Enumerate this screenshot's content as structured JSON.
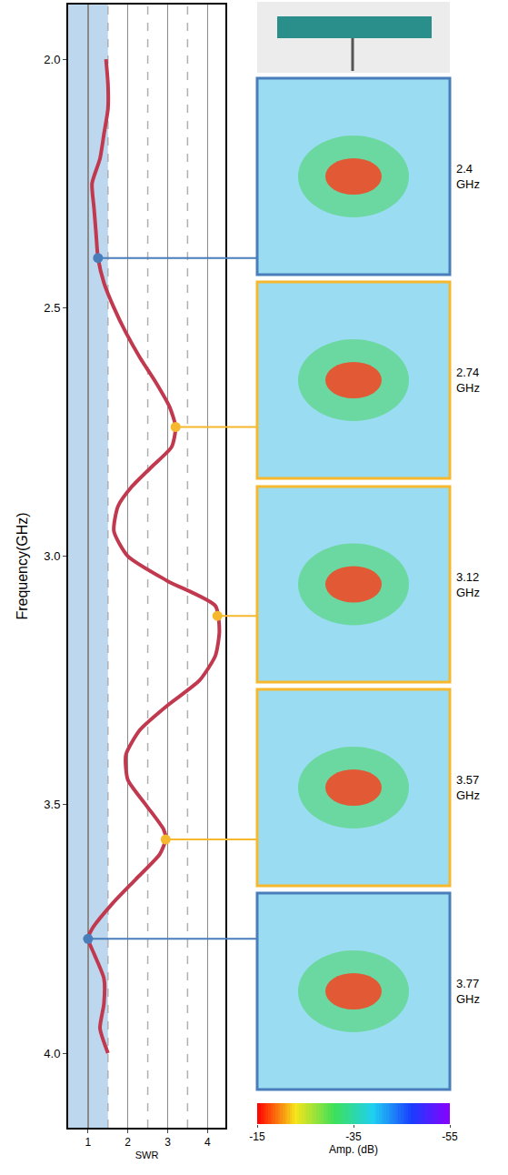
{
  "chart_data": {
    "type": "line",
    "x_label": "SWR",
    "y_label": "Frequency(GHz)",
    "xlim": [
      0.5,
      4.45
    ],
    "xticks": [
      1,
      2,
      3,
      4
    ],
    "minor_grid_x": [
      1.5,
      2.5,
      3.5
    ],
    "ylim": [
      4.15,
      1.89
    ],
    "yticks": [
      {
        "value": 2,
        "label": "2.0"
      },
      {
        "value": 2.5,
        "label": "2.5"
      },
      {
        "value": 3,
        "label": "3.0"
      },
      {
        "value": 3.5,
        "label": "3.5"
      },
      {
        "value": 4,
        "label": "4.0"
      }
    ],
    "grid": true,
    "band": {
      "xlim": [
        0.5,
        1.5
      ],
      "color": "#bdd7ee"
    },
    "series": [
      {
        "color": "#c0394f",
        "frequency": [
          2.0,
          2.05,
          2.1,
          2.15,
          2.2,
          2.25,
          2.3,
          2.35,
          2.4,
          2.45,
          2.5,
          2.55,
          2.6,
          2.65,
          2.7,
          2.74,
          2.78,
          2.82,
          2.86,
          2.9,
          2.95,
          3.0,
          3.05,
          3.1,
          3.15,
          3.2,
          3.25,
          3.3,
          3.35,
          3.4,
          3.45,
          3.5,
          3.55,
          3.57,
          3.6,
          3.65,
          3.7,
          3.75,
          3.77,
          3.8,
          3.85,
          3.9,
          3.95,
          4.0
        ],
        "swr": [
          1.45,
          1.5,
          1.5,
          1.4,
          1.3,
          1.1,
          1.15,
          1.2,
          1.25,
          1.4,
          1.65,
          1.95,
          2.3,
          2.7,
          3.05,
          3.2,
          3.1,
          2.6,
          2.1,
          1.75,
          1.65,
          2.0,
          3.0,
          4.2,
          4.3,
          4.2,
          3.8,
          3.0,
          2.3,
          1.95,
          2.0,
          2.45,
          2.9,
          2.95,
          2.8,
          2.2,
          1.6,
          1.1,
          1.0,
          1.15,
          1.4,
          1.4,
          1.3,
          1.5
        ]
      }
    ],
    "markers": [
      {
        "frequency": 2.4,
        "swr": 1.25,
        "label": "2.4 GHz",
        "color": "#4a7ebb"
      },
      {
        "frequency": 2.74,
        "swr": 3.2,
        "label": "2.74 GHz",
        "color": "#f5b82e"
      },
      {
        "frequency": 3.12,
        "swr": 4.25,
        "label": "3.12 GHz",
        "color": "#f5b82e"
      },
      {
        "frequency": 3.57,
        "swr": 2.95,
        "label": "3.57 GHz",
        "color": "#f5b82e"
      },
      {
        "frequency": 3.77,
        "swr": 1.0,
        "label": "3.77 GHz",
        "color": "#4a7ebb"
      }
    ],
    "colorbar": {
      "title": "Amp. (dB)",
      "range": [
        -15,
        -55
      ],
      "ticks": [
        -15,
        -35,
        -55
      ]
    }
  }
}
